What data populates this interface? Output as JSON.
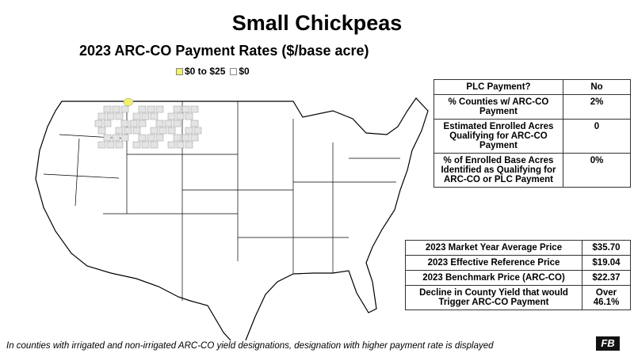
{
  "title": "Small Chickpeas",
  "subtitle": "2023 ARC-CO Payment Rates ($/base acre)",
  "legend": [
    {
      "label": "$0 to $25",
      "color": "#f2ee6e"
    },
    {
      "label": "$0",
      "color": "#ffffff"
    }
  ],
  "summary_table": {
    "rows": [
      [
        "PLC Payment?",
        "No"
      ],
      [
        "% Counties w/ ARC-CO Payment",
        "2%"
      ],
      [
        "Estimated Enrolled Acres Qualifying for ARC-CO Payment",
        "0"
      ],
      [
        "% of Enrolled Base Acres Identified as Qualifying for ARC-CO or PLC Payment",
        "0%"
      ]
    ]
  },
  "price_table": {
    "rows": [
      [
        "2023 Market Year Average Price",
        "$35.70"
      ],
      [
        "2023 Effective Reference Price",
        "$19.04"
      ],
      [
        "2023 Benchmark Price (ARC-CO)",
        "$22.37"
      ],
      [
        "Decline in County Yield that would Trigger ARC-CO Payment",
        "Over 46.1%"
      ]
    ]
  },
  "footnote": "In counties with irrigated and non-irrigated ARC-CO yield designations, designation with higher payment rate is displayed",
  "logo": "FB"
}
